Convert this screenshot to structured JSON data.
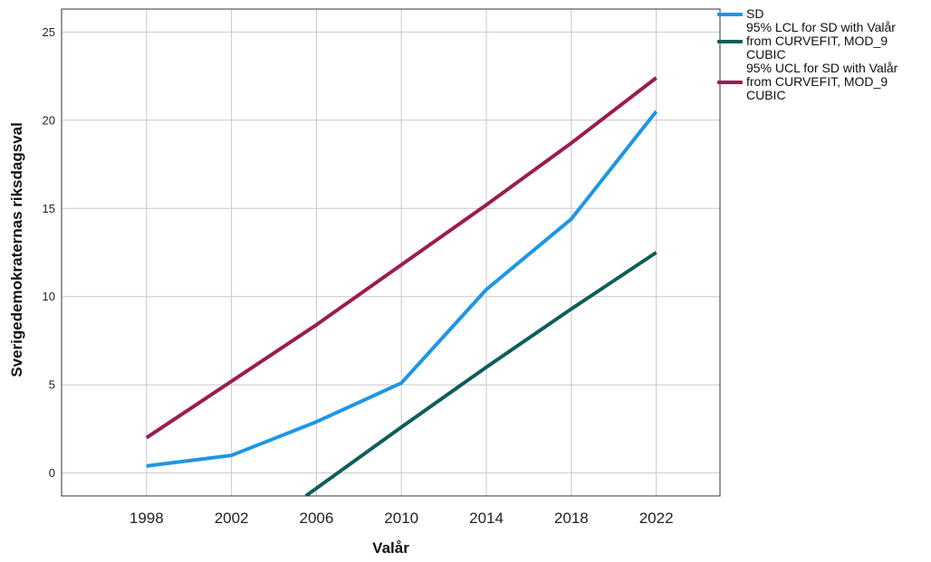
{
  "chart_data": {
    "type": "line",
    "title": "",
    "xlabel": "Valår",
    "ylabel": "Sverigedemokraternas riksdagsval",
    "x": [
      1998,
      2002,
      2006,
      2010,
      2014,
      2018,
      2022
    ],
    "x_ticks": [
      "1998",
      "2002",
      "2006",
      "2010",
      "2014",
      "2018",
      "2022"
    ],
    "y_ticks": [
      "0",
      "5",
      "10",
      "15",
      "20",
      "25"
    ],
    "xlim": [
      1994,
      2025
    ],
    "ylim": [
      -1.3,
      26.3
    ],
    "grid": true,
    "legend_position": "top-right",
    "series": [
      {
        "name": "SD",
        "color": "#1e96e6",
        "x": [
          1998,
          2002,
          2006,
          2010,
          2014,
          2018,
          2022
        ],
        "values": [
          0.4,
          1.0,
          2.9,
          5.1,
          10.4,
          14.4,
          20.5
        ]
      },
      {
        "name": "95% LCL for SD with Valår from CURVEFIT, MOD_9 CUBIC",
        "color": "#0e5e5a",
        "x": [
          2005.5,
          2010,
          2014,
          2018,
          2022
        ],
        "values": [
          -1.3,
          2.6,
          6.0,
          9.3,
          12.5
        ]
      },
      {
        "name": "95% UCL for SD with Valår from CURVEFIT, MOD_9 CUBIC",
        "color": "#9b1c52",
        "x": [
          1998,
          2002,
          2006,
          2010,
          2014,
          2018,
          2022
        ],
        "values": [
          2.0,
          5.2,
          8.4,
          11.8,
          15.2,
          18.7,
          22.4
        ]
      }
    ]
  },
  "legend": {
    "items": [
      {
        "label": "SD",
        "color": "#1e96e6"
      },
      {
        "label": "95% LCL for SD with Valår\nfrom CURVEFIT, MOD_9\nCUBIC",
        "color": "#0e5e5a"
      },
      {
        "label": "95% UCL for SD with Valår\nfrom CURVEFIT, MOD_9\nCUBIC",
        "color": "#9b1c52"
      }
    ]
  }
}
